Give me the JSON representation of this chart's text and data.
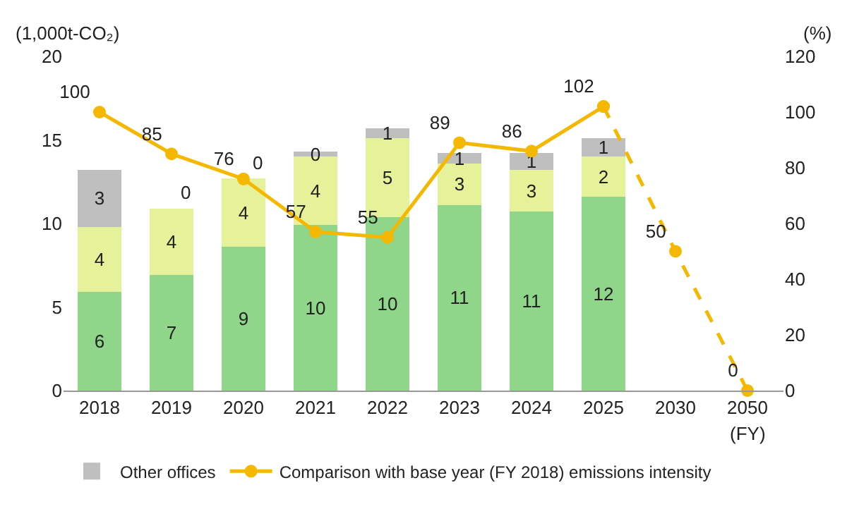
{
  "chart_data": {
    "type": "bar",
    "stacked": true,
    "ylabel": "(1,000t-CO₂)",
    "y2label": "(%)",
    "categories": [
      "2018",
      "2019",
      "2020",
      "2021",
      "2022",
      "2023",
      "2024",
      "2025",
      "2030",
      "2050"
    ],
    "annotations": [
      "(FY)"
    ],
    "ylim": [
      0,
      20
    ],
    "yticks": [
      0,
      5,
      10,
      15,
      20
    ],
    "y2lim": [
      0,
      120
    ],
    "y2ticks": [
      0,
      20,
      40,
      60,
      80,
      100,
      120
    ],
    "legend": "bottom",
    "series": [
      {
        "color": "#8fd68a",
        "values": [
          5.9,
          6.9,
          8.6,
          9.9,
          10.4,
          11.1,
          10.7,
          11.6,
          null,
          null
        ],
        "value_labels": [
          "6",
          "7",
          "9",
          "10",
          "10",
          "11",
          "11",
          "12",
          null,
          null
        ]
      },
      {
        "color": "#e6f29a",
        "values": [
          3.9,
          4.0,
          4.1,
          4.1,
          4.7,
          2.5,
          2.5,
          2.4,
          null,
          null
        ],
        "value_labels": [
          "4",
          "4",
          "4",
          "4",
          "5",
          "3",
          "3",
          "2",
          null,
          null
        ]
      },
      {
        "name": "Other offices",
        "color": "#bfbfbf",
        "values": [
          3.4,
          0,
          0,
          0.3,
          0.6,
          0.6,
          1.0,
          1.1,
          null,
          null
        ],
        "value_labels": [
          "3",
          "0",
          "0",
          "0",
          "1",
          "1",
          "1",
          "1",
          null,
          null
        ]
      },
      {
        "name": "Comparison with base year (FY 2018) emissions intensity",
        "type": "line",
        "axis": "y2",
        "color": "#f5b800",
        "marker": "circle",
        "line_style": "solid",
        "values": [
          100,
          85,
          76,
          57,
          55,
          89,
          86,
          102,
          null,
          null
        ],
        "value_labels": [
          "100",
          "85",
          "76",
          "57",
          "55",
          "89",
          "86",
          "102",
          null,
          null
        ]
      },
      {
        "type": "line",
        "axis": "y2",
        "color": "#f5b800",
        "marker": "circle",
        "line_style": "dashed",
        "values": [
          null,
          null,
          null,
          null,
          null,
          null,
          null,
          102,
          50,
          0
        ],
        "value_labels": [
          null,
          null,
          null,
          null,
          null,
          null,
          null,
          null,
          "50",
          "0"
        ]
      }
    ]
  }
}
